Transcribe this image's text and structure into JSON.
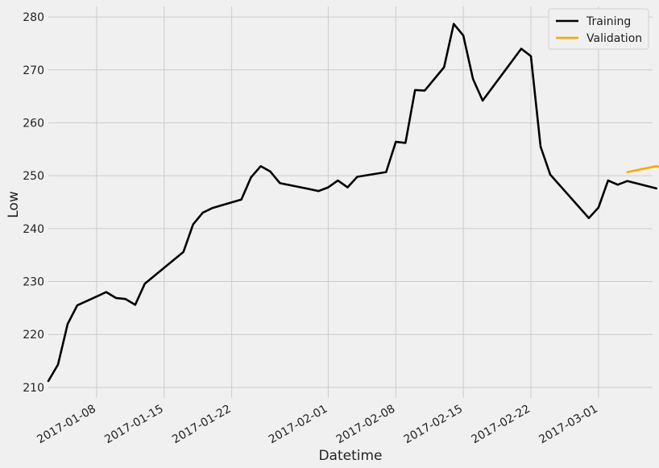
{
  "chart_data": {
    "type": "line",
    "xlabel": "Datetime",
    "ylabel": "Low",
    "ylim": [
      208,
      282
    ],
    "xlim": [
      "2017-01-03",
      "2017-03-07"
    ],
    "yticks": [
      210,
      220,
      230,
      240,
      250,
      260,
      270,
      280
    ],
    "xticks": [
      "2017-01-08",
      "2017-01-15",
      "2017-01-22",
      "2017-02-01",
      "2017-02-08",
      "2017-02-15",
      "2017-02-22",
      "2017-03-01"
    ],
    "grid": true,
    "legend_position": "top-right",
    "series": [
      {
        "name": "Training",
        "color": "#000000",
        "points": [
          [
            "2017-01-03",
            211.2
          ],
          [
            "2017-01-04",
            214.3
          ],
          [
            "2017-01-05",
            222.0
          ],
          [
            "2017-01-06",
            225.5
          ],
          [
            "2017-01-09",
            228.0
          ],
          [
            "2017-01-10",
            226.9
          ],
          [
            "2017-01-11",
            226.7
          ],
          [
            "2017-01-12",
            225.6
          ],
          [
            "2017-01-13",
            229.6
          ],
          [
            "2017-01-17",
            235.6
          ],
          [
            "2017-01-18",
            240.8
          ],
          [
            "2017-01-19",
            243.0
          ],
          [
            "2017-01-20",
            243.9
          ],
          [
            "2017-01-23",
            245.5
          ],
          [
            "2017-01-24",
            249.7
          ],
          [
            "2017-01-25",
            251.8
          ],
          [
            "2017-01-26",
            250.8
          ],
          [
            "2017-01-27",
            248.6
          ],
          [
            "2017-01-30",
            247.5
          ],
          [
            "2017-01-31",
            247.1
          ],
          [
            "2017-02-01",
            247.8
          ],
          [
            "2017-02-02",
            249.1
          ],
          [
            "2017-02-03",
            247.8
          ],
          [
            "2017-02-04",
            249.8
          ],
          [
            "2017-02-07",
            250.7
          ],
          [
            "2017-02-08",
            256.4
          ],
          [
            "2017-02-09",
            256.2
          ],
          [
            "2017-02-10",
            266.2
          ],
          [
            "2017-02-11",
            266.1
          ],
          [
            "2017-02-13",
            270.5
          ],
          [
            "2017-02-14",
            278.7
          ],
          [
            "2017-02-15",
            276.5
          ],
          [
            "2017-02-16",
            268.3
          ],
          [
            "2017-02-17",
            264.2
          ],
          [
            "2017-02-21",
            274.0
          ],
          [
            "2017-02-22",
            272.6
          ],
          [
            "2017-02-23",
            255.5
          ],
          [
            "2017-02-24",
            250.2
          ],
          [
            "2017-02-28",
            242.0
          ],
          [
            "2017-03-01",
            244.0
          ],
          [
            "2017-03-02",
            249.1
          ],
          [
            "2017-03-03",
            248.3
          ],
          [
            "2017-03-04",
            249.0
          ],
          [
            "2017-03-07",
            247.6
          ]
        ]
      },
      {
        "name": "Validation",
        "color": "#ffa500",
        "points": [
          [
            "2017-03-04",
            250.7
          ],
          [
            "2017-03-07",
            251.8
          ],
          [
            "2017-03-08",
            251.3
          ]
        ]
      }
    ]
  }
}
